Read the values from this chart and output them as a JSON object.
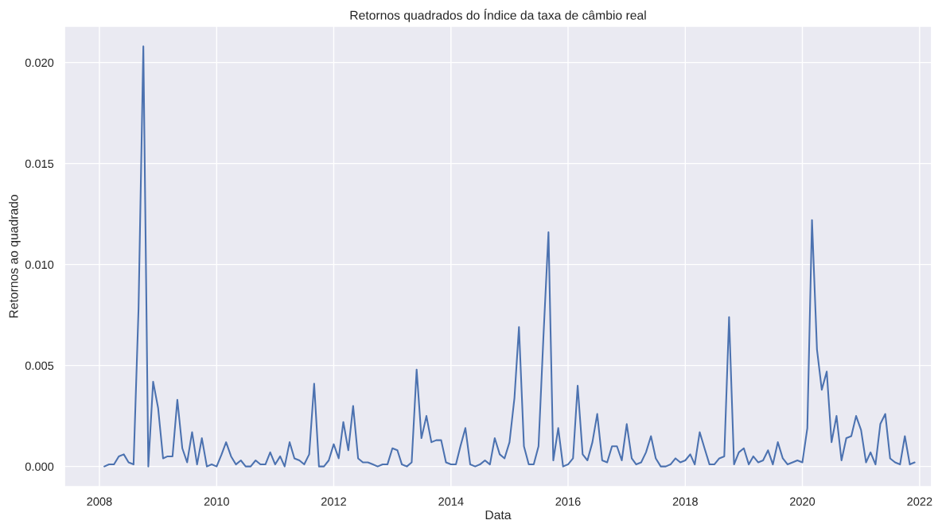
{
  "chart_data": {
    "type": "line",
    "title": "Retornos quadrados do Índice da taxa de câmbio real",
    "xlabel": "Data",
    "ylabel": "Retornos ao quadrado",
    "x": [
      "2008-02",
      "2008-03",
      "2008-04",
      "2008-05",
      "2008-06",
      "2008-07",
      "2008-08",
      "2008-09",
      "2008-10",
      "2008-11",
      "2008-12",
      "2009-01",
      "2009-02",
      "2009-03",
      "2009-04",
      "2009-05",
      "2009-06",
      "2009-07",
      "2009-08",
      "2009-09",
      "2009-10",
      "2009-11",
      "2009-12",
      "2010-01",
      "2010-02",
      "2010-03",
      "2010-04",
      "2010-05",
      "2010-06",
      "2010-07",
      "2010-08",
      "2010-09",
      "2010-10",
      "2010-11",
      "2010-12",
      "2011-01",
      "2011-02",
      "2011-03",
      "2011-04",
      "2011-05",
      "2011-06",
      "2011-07",
      "2011-08",
      "2011-09",
      "2011-10",
      "2011-11",
      "2011-12",
      "2012-01",
      "2012-02",
      "2012-03",
      "2012-04",
      "2012-05",
      "2012-06",
      "2012-07",
      "2012-08",
      "2012-09",
      "2012-10",
      "2012-11",
      "2012-12",
      "2013-01",
      "2013-02",
      "2013-03",
      "2013-04",
      "2013-05",
      "2013-06",
      "2013-07",
      "2013-08",
      "2013-09",
      "2013-10",
      "2013-11",
      "2013-12",
      "2014-01",
      "2014-02",
      "2014-03",
      "2014-04",
      "2014-05",
      "2014-06",
      "2014-07",
      "2014-08",
      "2014-09",
      "2014-10",
      "2014-11",
      "2014-12",
      "2015-01",
      "2015-02",
      "2015-03",
      "2015-04",
      "2015-05",
      "2015-06",
      "2015-07",
      "2015-08",
      "2015-09",
      "2015-10",
      "2015-11",
      "2015-12",
      "2016-01",
      "2016-02",
      "2016-03",
      "2016-04",
      "2016-05",
      "2016-06",
      "2016-07",
      "2016-08",
      "2016-09",
      "2016-10",
      "2016-11",
      "2016-12",
      "2017-01",
      "2017-02",
      "2017-03",
      "2017-04",
      "2017-05",
      "2017-06",
      "2017-07",
      "2017-08",
      "2017-09",
      "2017-10",
      "2017-11",
      "2017-12",
      "2018-01",
      "2018-02",
      "2018-03",
      "2018-04",
      "2018-05",
      "2018-06",
      "2018-07",
      "2018-08",
      "2018-09",
      "2018-10",
      "2018-11",
      "2018-12",
      "2019-01",
      "2019-02",
      "2019-03",
      "2019-04",
      "2019-05",
      "2019-06",
      "2019-07",
      "2019-08",
      "2019-09",
      "2019-10",
      "2019-11",
      "2019-12",
      "2020-01",
      "2020-02",
      "2020-03",
      "2020-04",
      "2020-05",
      "2020-06",
      "2020-07",
      "2020-08",
      "2020-09",
      "2020-10",
      "2020-11",
      "2020-12",
      "2021-01",
      "2021-02",
      "2021-03",
      "2021-04",
      "2021-05",
      "2021-06",
      "2021-07",
      "2021-08",
      "2021-09",
      "2021-10",
      "2021-11",
      "2021-12"
    ],
    "series": [
      {
        "color": "#4c72b0",
        "values": [
          0.0,
          0.0001,
          0.0001,
          0.0005,
          0.0006,
          0.0002,
          0.0001,
          0.0078,
          0.0208,
          0.0,
          0.0042,
          0.0029,
          0.0004,
          0.0005,
          0.0005,
          0.0033,
          0.0009,
          0.0002,
          0.0017,
          0.0001,
          0.0014,
          0.0,
          0.0001,
          0.0,
          0.0006,
          0.0012,
          0.0005,
          0.0001,
          0.0003,
          0.0,
          0.0,
          0.0003,
          0.0001,
          0.0001,
          0.0007,
          0.0001,
          0.0005,
          0.0,
          0.0012,
          0.0004,
          0.0003,
          0.0001,
          0.0006,
          0.0041,
          0.0,
          0.0,
          0.0003,
          0.0011,
          0.0004,
          0.0022,
          0.0008,
          0.003,
          0.0004,
          0.0002,
          0.0002,
          0.0001,
          0.0,
          0.0001,
          0.0001,
          0.0009,
          0.0008,
          0.0001,
          0.0,
          0.0002,
          0.0048,
          0.0014,
          0.0025,
          0.0012,
          0.0013,
          0.0013,
          0.0002,
          0.0001,
          0.0001,
          0.001,
          0.0019,
          0.0001,
          0.0,
          0.0001,
          0.0003,
          0.0001,
          0.0014,
          0.0006,
          0.0004,
          0.0012,
          0.0034,
          0.0069,
          0.001,
          0.0001,
          0.0001,
          0.001,
          0.0065,
          0.0116,
          0.0003,
          0.0019,
          0.0,
          0.0001,
          0.0004,
          0.004,
          0.0006,
          0.0003,
          0.0012,
          0.0026,
          0.0003,
          0.0002,
          0.001,
          0.001,
          0.0003,
          0.0021,
          0.0004,
          0.0001,
          0.0002,
          0.0007,
          0.0015,
          0.0004,
          0.0,
          0.0,
          0.0001,
          0.0004,
          0.0002,
          0.0003,
          0.0006,
          0.0001,
          0.0017,
          0.0009,
          0.0001,
          0.0001,
          0.0004,
          0.0005,
          0.0074,
          0.0001,
          0.0007,
          0.0009,
          0.0001,
          0.0005,
          0.0002,
          0.0003,
          0.0008,
          0.0001,
          0.0012,
          0.0004,
          0.0001,
          0.0002,
          0.0003,
          0.0002,
          0.0019,
          0.0122,
          0.0058,
          0.0038,
          0.0047,
          0.0012,
          0.0025,
          0.0003,
          0.0014,
          0.0015,
          0.0025,
          0.0018,
          0.0002,
          0.0007,
          0.0001,
          0.0021,
          0.0026,
          0.0004,
          0.0002,
          0.0001,
          0.0015,
          0.0001,
          0.0002
        ]
      }
    ],
    "xlim": [
      "2007-05-28",
      "2022-03-17"
    ],
    "ylim": [
      -0.001,
      0.0218
    ],
    "xticks": [
      "2008",
      "2010",
      "2012",
      "2014",
      "2016",
      "2018",
      "2020",
      "2022"
    ],
    "yticks": [
      {
        "value": 0,
        "label": "0.000"
      },
      {
        "value": 0.005,
        "label": "0.005"
      },
      {
        "value": 0.01,
        "label": "0.010"
      },
      {
        "value": 0.015,
        "label": "0.015"
      },
      {
        "value": 0.02,
        "label": "0.020"
      }
    ],
    "grid": true,
    "line_style": "solid"
  }
}
